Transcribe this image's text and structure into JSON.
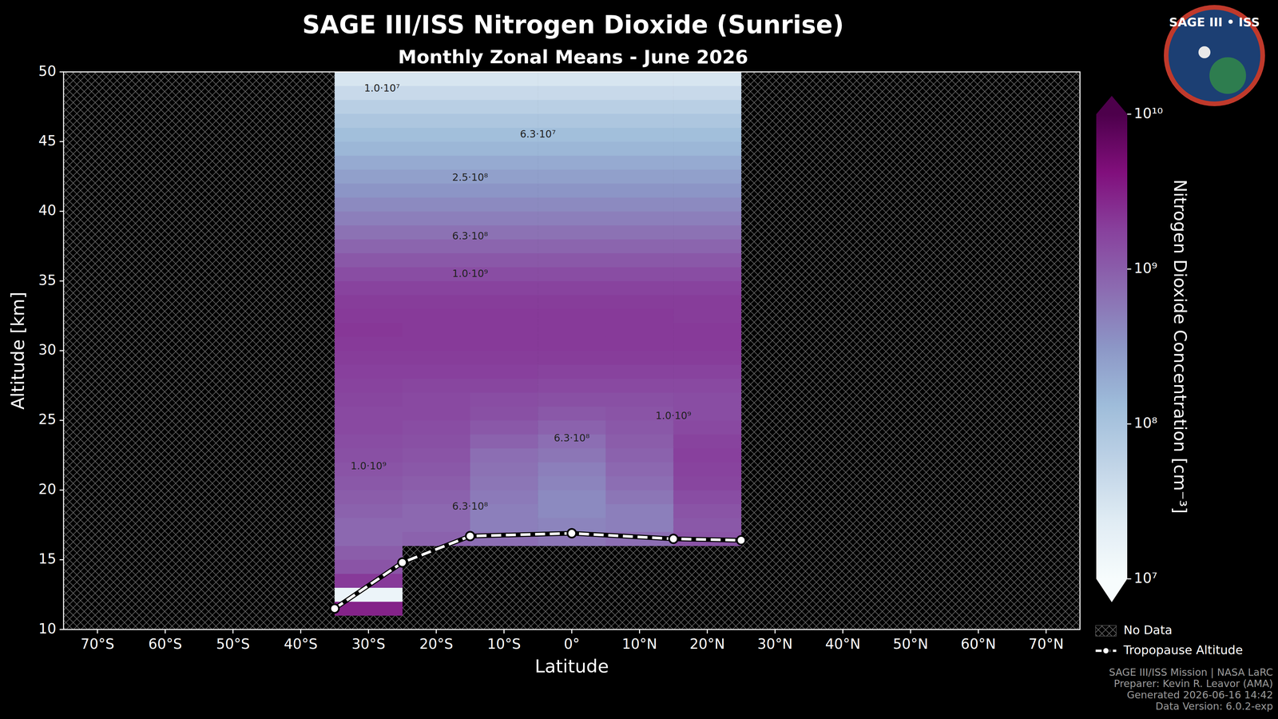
{
  "chart_data": {
    "type": "heatmap",
    "title": "SAGE III/ISS Nitrogen Dioxide (Sunrise)",
    "subtitle": "Monthly Zonal Means - June 2026",
    "x_label": "Latitude",
    "y_label": "Altitude [km]",
    "xlim": [
      -75,
      75
    ],
    "ylim": [
      10,
      50
    ],
    "xticks": [
      {
        "value": -70,
        "label": "70°S"
      },
      {
        "value": -60,
        "label": "60°S"
      },
      {
        "value": -50,
        "label": "50°S"
      },
      {
        "value": -40,
        "label": "40°S"
      },
      {
        "value": -30,
        "label": "30°S"
      },
      {
        "value": -20,
        "label": "20°S"
      },
      {
        "value": -10,
        "label": "10°S"
      },
      {
        "value": 0,
        "label": "0°"
      },
      {
        "value": 10,
        "label": "10°N"
      },
      {
        "value": 20,
        "label": "20°N"
      },
      {
        "value": 30,
        "label": "30°N"
      },
      {
        "value": 40,
        "label": "40°N"
      },
      {
        "value": 50,
        "label": "50°N"
      },
      {
        "value": 60,
        "label": "60°N"
      },
      {
        "value": 70,
        "label": "70°N"
      }
    ],
    "yticks": [
      10,
      15,
      20,
      25,
      30,
      35,
      40,
      45,
      50
    ],
    "lat_edges": [
      -35,
      -25,
      -15,
      -5,
      5,
      15,
      25
    ],
    "alt_edges": [
      10,
      11,
      12,
      13,
      14,
      15,
      16,
      17,
      18,
      19,
      20,
      21,
      22,
      23,
      24,
      25,
      26,
      27,
      28,
      29,
      30,
      31,
      32,
      33,
      34,
      35,
      36,
      37,
      38,
      39,
      40,
      41,
      42,
      43,
      44,
      45,
      46,
      47,
      48,
      49,
      50
    ],
    "values": [
      [
        null,
        null,
        null,
        null,
        null,
        null
      ],
      [
        3000000000.0,
        null,
        null,
        null,
        null,
        null
      ],
      [
        15000000.0,
        null,
        null,
        null,
        null,
        null
      ],
      [
        2000000000.0,
        null,
        null,
        null,
        null,
        null
      ],
      [
        1200000000.0,
        null,
        null,
        null,
        null,
        null
      ],
      [
        1000000000.0,
        null,
        null,
        null,
        null,
        null
      ],
      [
        800000000.0,
        900000000.0,
        700000000.0,
        600000000.0,
        700000000.0,
        1200000000.0
      ],
      [
        800000000.0,
        800000000.0,
        500000000.0,
        450000000.0,
        500000000.0,
        1100000000.0
      ],
      [
        900000000.0,
        800000000.0,
        500000000.0,
        400000000.0,
        500000000.0,
        1200000000.0
      ],
      [
        1000000000.0,
        900000000.0,
        550000000.0,
        400000000.0,
        600000000.0,
        1400000000.0
      ],
      [
        1100000000.0,
        1000000000.0,
        600000000.0,
        450000000.0,
        700000000.0,
        1600000000.0
      ],
      [
        1200000000.0,
        1100000000.0,
        650000000.0,
        500000000.0,
        800000000.0,
        1700000000.0
      ],
      [
        1300000000.0,
        1200000000.0,
        700000000.0,
        600000000.0,
        900000000.0,
        1800000000.0
      ],
      [
        1400000000.0,
        1300000000.0,
        900000000.0,
        700000000.0,
        1000000000.0,
        1700000000.0
      ],
      [
        1500000000.0,
        1400000000.0,
        1100000000.0,
        900000000.0,
        1100000000.0,
        1500000000.0
      ],
      [
        1500000000.0,
        1500000000.0,
        1300000000.0,
        1100000000.0,
        1200000000.0,
        1400000000.0
      ],
      [
        1600000000.0,
        1500000000.0,
        1400000000.0,
        1300000000.0,
        1300000000.0,
        1400000000.0
      ],
      [
        1700000000.0,
        1600000000.0,
        1600000000.0,
        1500000000.0,
        1500000000.0,
        1500000000.0
      ],
      [
        1800000000.0,
        1800000000.0,
        1800000000.0,
        1700000000.0,
        1700000000.0,
        1700000000.0
      ],
      [
        1900000000.0,
        1900000000.0,
        1900000000.0,
        1900000000.0,
        1900000000.0,
        1900000000.0
      ],
      [
        2000000000.0,
        2000000000.0,
        2000000000.0,
        2000000000.0,
        2000000000.0,
        2000000000.0
      ],
      [
        2100000000.0,
        2000000000.0,
        2000000000.0,
        2000000000.0,
        2000000000.0,
        2000000000.0
      ],
      [
        2000000000.0,
        2000000000.0,
        2000000000.0,
        2000000000.0,
        2000000000.0,
        1900000000.0
      ],
      [
        1900000000.0,
        1900000000.0,
        1900000000.0,
        1900000000.0,
        1900000000.0,
        1900000000.0
      ],
      [
        1700000000.0,
        1700000000.0,
        1700000000.0,
        1700000000.0,
        1700000000.0,
        1700000000.0
      ],
      [
        1400000000.0,
        1400000000.0,
        1400000000.0,
        1400000000.0,
        1400000000.0,
        1400000000.0
      ],
      [
        1100000000.0,
        1100000000.0,
        1100000000.0,
        1100000000.0,
        1100000000.0,
        1100000000.0
      ],
      [
        850000000.0,
        850000000.0,
        850000000.0,
        850000000.0,
        850000000.0,
        850000000.0
      ],
      [
        650000000.0,
        650000000.0,
        650000000.0,
        650000000.0,
        650000000.0,
        650000000.0
      ],
      [
        500000000.0,
        500000000.0,
        500000000.0,
        500000000.0,
        500000000.0,
        500000000.0
      ],
      [
        400000000.0,
        400000000.0,
        400000000.0,
        400000000.0,
        400000000.0,
        400000000.0
      ],
      [
        320000000.0,
        320000000.0,
        320000000.0,
        320000000.0,
        320000000.0,
        320000000.0
      ],
      [
        250000000.0,
        250000000.0,
        250000000.0,
        250000000.0,
        250000000.0,
        250000000.0
      ],
      [
        200000000.0,
        200000000.0,
        200000000.0,
        200000000.0,
        200000000.0,
        200000000.0
      ],
      [
        150000000.0,
        150000000.0,
        150000000.0,
        150000000.0,
        150000000.0,
        150000000.0
      ],
      [
        120000000.0,
        120000000.0,
        120000000.0,
        120000000.0,
        120000000.0,
        120000000.0
      ],
      [
        90000000.0,
        90000000.0,
        90000000.0,
        90000000.0,
        90000000.0,
        90000000.0
      ],
      [
        65000000.0,
        65000000.0,
        65000000.0,
        65000000.0,
        65000000.0,
        65000000.0
      ],
      [
        45000000.0,
        45000000.0,
        45000000.0,
        45000000.0,
        45000000.0,
        45000000.0
      ],
      [
        30000000.0,
        30000000.0,
        30000000.0,
        30000000.0,
        30000000.0,
        30000000.0
      ]
    ],
    "contour_labels": [
      {
        "lat": -28,
        "alt": 48.8,
        "label": "1.0·10⁷"
      },
      {
        "lat": -5,
        "alt": 45.5,
        "label": "6.3·10⁷"
      },
      {
        "lat": -15,
        "alt": 42.4,
        "label": "2.5·10⁸"
      },
      {
        "lat": -15,
        "alt": 38.2,
        "label": "6.3·10⁸"
      },
      {
        "lat": -15,
        "alt": 35.5,
        "label": "1.0·10⁹"
      },
      {
        "lat": -30,
        "alt": 21.7,
        "label": "1.0·10⁹"
      },
      {
        "lat": 0,
        "alt": 23.7,
        "label": "6.3·10⁸"
      },
      {
        "lat": -15,
        "alt": 18.8,
        "label": "6.3·10⁸"
      },
      {
        "lat": 15,
        "alt": 25.3,
        "label": "1.0·10⁹"
      }
    ],
    "colorbar": {
      "label": "Nitrogen Dioxide Concentration [cm⁻³]",
      "range": [
        10000000.0,
        10000000000.0
      ],
      "log": true,
      "ticks": [
        {
          "value": 10000000.0,
          "label": "10⁷"
        },
        {
          "value": 100000000.0,
          "label": "10⁸"
        },
        {
          "value": 1000000000.0,
          "label": "10⁹"
        },
        {
          "value": 10000000000.0,
          "label": "10¹⁰"
        }
      ]
    },
    "series": [
      {
        "name": "Tropopause Altitude",
        "type": "line",
        "color": "#ffffff",
        "line_style": "dashed",
        "marker": "circle",
        "x": [
          -35,
          -25,
          -15,
          0,
          15,
          25
        ],
        "values": [
          11.5,
          14.8,
          16.7,
          16.9,
          16.5,
          16.4
        ]
      }
    ],
    "no_data_label": "No Data",
    "legend": "right",
    "logo_text": "SAGE III • ISS",
    "footer": [
      "SAGE III/ISS Mission | NASA LaRC",
      "Preparer: Kevin R. Leavor (AMA)",
      "Generated 2026-06-16 14:42",
      "Data Version: 6.0.2-exp"
    ]
  }
}
